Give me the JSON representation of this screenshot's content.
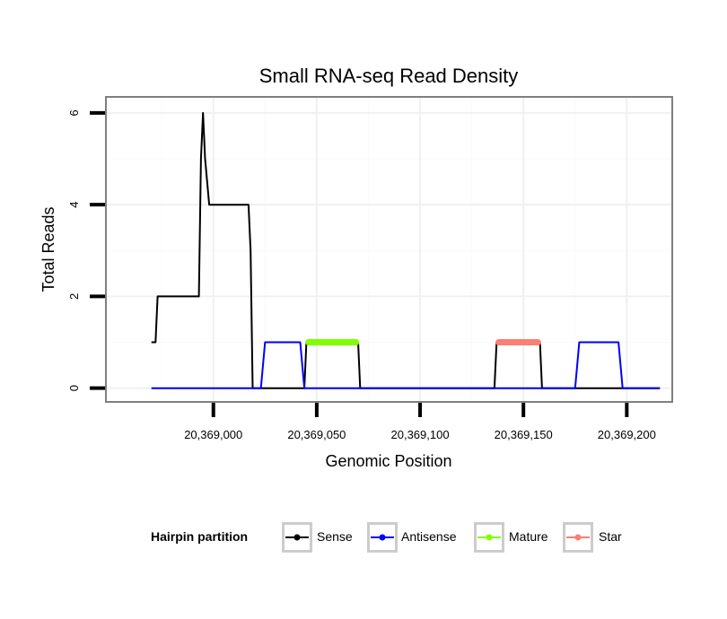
{
  "chart_data": {
    "type": "line",
    "title": "Small RNA-seq Read Density",
    "xlabel": "Genomic Position",
    "ylabel": "Total Reads",
    "xlim": [
      20368948,
      20369222
    ],
    "ylim": [
      -0.3,
      6.35
    ],
    "x_ticks": [
      20369000,
      20369050,
      20369100,
      20369150,
      20369200
    ],
    "x_tick_labels": [
      "20,369,000",
      "20,369,050",
      "20,369,100",
      "20,369,150",
      "20,369,200"
    ],
    "y_ticks": [
      0,
      2,
      4,
      6
    ],
    "y_tick_labels": [
      "0",
      "2",
      "4",
      "6"
    ],
    "grid": true,
    "legend": {
      "title": "Hairpin partition",
      "position": "bottom",
      "entries": [
        {
          "name": "Sense",
          "color": "#000000"
        },
        {
          "name": "Antisense",
          "color": "#0000ff"
        },
        {
          "name": "Mature",
          "color": "#7fff00"
        },
        {
          "name": "Star",
          "color": "#fa8072"
        }
      ]
    },
    "series": [
      {
        "name": "Sense",
        "color": "#000000",
        "width": 2,
        "x": [
          20368970,
          20368972,
          20368973,
          20368993,
          20368994,
          20368995,
          20368996,
          20368998,
          20369017,
          20369018,
          20369019,
          20369020,
          20369044,
          20369045,
          20369070,
          20369071,
          20369136,
          20369137,
          20369158,
          20369159,
          20369216
        ],
        "y": [
          1,
          1,
          2,
          2,
          5,
          6,
          5,
          4,
          4,
          3,
          0,
          0,
          0,
          1,
          1,
          0,
          0,
          1,
          1,
          0,
          0
        ]
      },
      {
        "name": "Antisense",
        "color": "#0000ff",
        "width": 2,
        "x": [
          20368970,
          20369023,
          20369025,
          20369042,
          20369044,
          20369175,
          20369177,
          20369196,
          20369198,
          20369216
        ],
        "y": [
          0,
          0,
          1,
          1,
          0,
          0,
          1,
          1,
          0,
          0
        ]
      },
      {
        "name": "Mature",
        "color": "#7fff00",
        "width": 7,
        "x": [
          20369046,
          20369069
        ],
        "y": [
          1,
          1
        ]
      },
      {
        "name": "Star",
        "color": "#fa8072",
        "width": 7,
        "x": [
          20369138,
          20369157
        ],
        "y": [
          1,
          1
        ]
      }
    ]
  }
}
